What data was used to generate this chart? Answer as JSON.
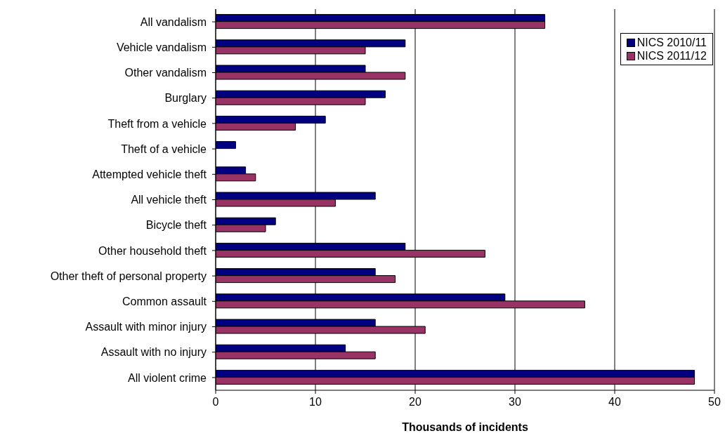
{
  "chart_data": {
    "type": "bar",
    "orientation": "horizontal",
    "xlabel": "Thousands of incidents",
    "categories": [
      "All vandalism",
      "Vehicle vandalism",
      "Other vandalism",
      "Burglary",
      "Theft from a vehicle",
      "Theft of a vehicle",
      "Attempted vehicle theft",
      "All vehicle theft",
      "Bicycle theft",
      "Other household theft",
      "Other theft of personal property",
      "Common assault",
      "Assault with minor injury",
      "Assault with no injury",
      "All violent crime"
    ],
    "series": [
      {
        "name": "NICS 2010/11",
        "color": "#000080",
        "values": [
          33,
          19,
          15,
          17,
          11,
          2,
          3,
          16,
          6,
          19,
          16,
          29,
          16,
          13,
          48
        ]
      },
      {
        "name": "NICS 2011/12",
        "color": "#993366",
        "values": [
          33,
          15,
          19,
          15,
          8,
          null,
          4,
          12,
          5,
          27,
          18,
          37,
          21,
          16,
          48
        ]
      }
    ],
    "xlim": [
      0,
      50
    ],
    "xticks": [
      0,
      10,
      20,
      30,
      40,
      50
    ],
    "grid": "x",
    "legend": "top right"
  }
}
